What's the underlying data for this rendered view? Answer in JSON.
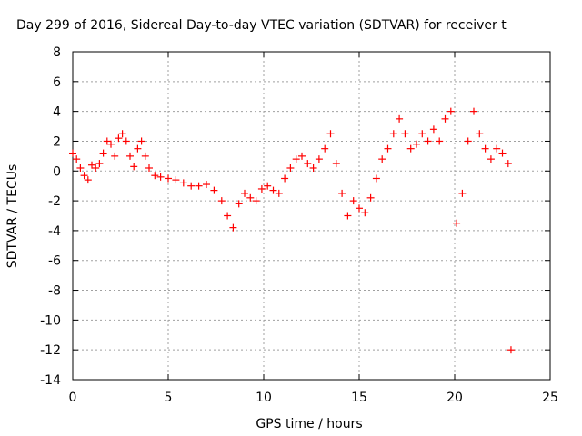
{
  "chart_data": {
    "type": "scatter",
    "title": "Day 299 of 2016, Sidereal Day-to-day VTEC variation (SDTVAR) for receiver t",
    "xlabel": "GPS time / hours",
    "ylabel": "SDTVAR / TECUs",
    "xlim": [
      0,
      25
    ],
    "ylim": [
      -14,
      8
    ],
    "xticks": [
      0,
      5,
      10,
      15,
      20,
      25
    ],
    "yticks": [
      -14,
      -12,
      -10,
      -8,
      -6,
      -4,
      -2,
      0,
      2,
      4,
      6,
      8
    ],
    "grid": true,
    "marker": "+",
    "color": "#ff0000",
    "series": [
      {
        "name": "SDTVAR",
        "x": [
          0.0,
          0.2,
          0.4,
          0.6,
          0.8,
          1.0,
          1.2,
          1.4,
          1.6,
          1.8,
          2.0,
          2.2,
          2.4,
          2.6,
          2.8,
          3.0,
          3.2,
          3.4,
          3.6,
          3.8,
          4.0,
          4.3,
          4.6,
          5.0,
          5.4,
          5.8,
          6.2,
          6.6,
          7.0,
          7.4,
          7.8,
          8.1,
          8.4,
          8.7,
          9.0,
          9.3,
          9.6,
          9.9,
          10.2,
          10.5,
          10.8,
          11.1,
          11.4,
          11.7,
          12.0,
          12.3,
          12.6,
          12.9,
          13.2,
          13.5,
          13.8,
          14.1,
          14.4,
          14.7,
          15.0,
          15.3,
          15.6,
          15.9,
          16.2,
          16.5,
          16.8,
          17.1,
          17.4,
          17.7,
          18.0,
          18.3,
          18.6,
          18.9,
          19.2,
          19.5,
          19.8,
          20.1,
          20.4,
          20.7,
          21.0,
          21.3,
          21.6,
          21.9,
          22.2,
          22.5,
          22.8,
          22.95
        ],
        "y": [
          1.2,
          0.8,
          0.2,
          -0.3,
          -0.6,
          0.4,
          0.2,
          0.5,
          1.2,
          2.0,
          1.8,
          1.0,
          2.2,
          2.5,
          2.0,
          1.0,
          0.3,
          1.5,
          2.0,
          1.0,
          0.2,
          -0.3,
          -0.4,
          -0.5,
          -0.6,
          -0.8,
          -1.0,
          -1.0,
          -0.9,
          -1.3,
          -2.0,
          -3.0,
          -3.8,
          -2.2,
          -1.5,
          -1.8,
          -2.0,
          -1.2,
          -1.0,
          -1.3,
          -1.5,
          -0.5,
          0.2,
          0.8,
          1.0,
          0.5,
          0.2,
          0.8,
          1.5,
          2.5,
          0.5,
          -1.5,
          -3.0,
          -2.0,
          -2.5,
          -2.8,
          -1.8,
          -0.5,
          0.8,
          1.5,
          2.5,
          3.5,
          2.5,
          1.5,
          1.8,
          2.5,
          2.0,
          2.8,
          2.0,
          3.5,
          4.0,
          -3.5,
          -1.5,
          2.0,
          4.0,
          2.5,
          1.5,
          0.8,
          1.5,
          1.2,
          0.5,
          -12.0
        ]
      }
    ]
  }
}
